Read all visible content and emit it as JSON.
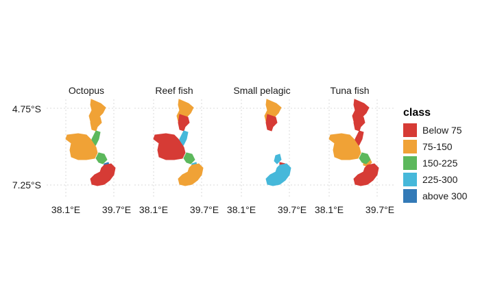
{
  "chart_data": {
    "type": "choropleth-facets",
    "panels": [
      {
        "title": "Octopus",
        "regions": [
          {
            "region": "north",
            "class": "75-150"
          },
          {
            "region": "north-mid",
            "class": "75-150"
          },
          {
            "region": "strip",
            "class": "150-225"
          },
          {
            "region": "main",
            "class": "75-150"
          },
          {
            "region": "south-green",
            "class": "150-225"
          },
          {
            "region": "south-blue",
            "class": "above 300"
          },
          {
            "region": "south",
            "class": "Below 75"
          }
        ]
      },
      {
        "title": "Reef fish",
        "regions": [
          {
            "region": "north",
            "class": "75-150"
          },
          {
            "region": "north-mid",
            "class": "Below 75"
          },
          {
            "region": "strip",
            "class": "225-300"
          },
          {
            "region": "main",
            "class": "Below 75"
          },
          {
            "region": "south-green",
            "class": "150-225"
          },
          {
            "region": "south-blue",
            "class": "225-300"
          },
          {
            "region": "south",
            "class": "75-150"
          }
        ]
      },
      {
        "title": "Small pelagic",
        "regions": [
          {
            "region": "north",
            "class": "75-150"
          },
          {
            "region": "north-mid",
            "class": "Below 75"
          },
          {
            "region": "south-blue",
            "class": "225-300"
          },
          {
            "region": "south-red",
            "class": "Below 75"
          },
          {
            "region": "south",
            "class": "225-300"
          }
        ]
      },
      {
        "title": "Tuna fish",
        "regions": [
          {
            "region": "north",
            "class": "Below 75"
          },
          {
            "region": "north-mid",
            "class": "Below 75"
          },
          {
            "region": "strip",
            "class": "Below 75"
          },
          {
            "region": "main",
            "class": "75-150"
          },
          {
            "region": "south-orange",
            "class": "75-150"
          },
          {
            "region": "south-green",
            "class": "150-225"
          },
          {
            "region": "south",
            "class": "Below 75"
          }
        ]
      }
    ],
    "x_ticks": [
      "38.1°E",
      "39.7°E"
    ],
    "y_ticks": [
      "4.75°S",
      "7.25°S"
    ],
    "legend": {
      "title": "class",
      "placement": "right",
      "entries": [
        {
          "label": "Below 75",
          "color": "#d63b35"
        },
        {
          "label": "75-150",
          "color": "#f0a236"
        },
        {
          "label": "150-225",
          "color": "#5cb85c"
        },
        {
          "label": "225-300",
          "color": "#46b8da"
        },
        {
          "label": "above 300",
          "color": "#337ab7"
        }
      ]
    },
    "grid": true
  }
}
